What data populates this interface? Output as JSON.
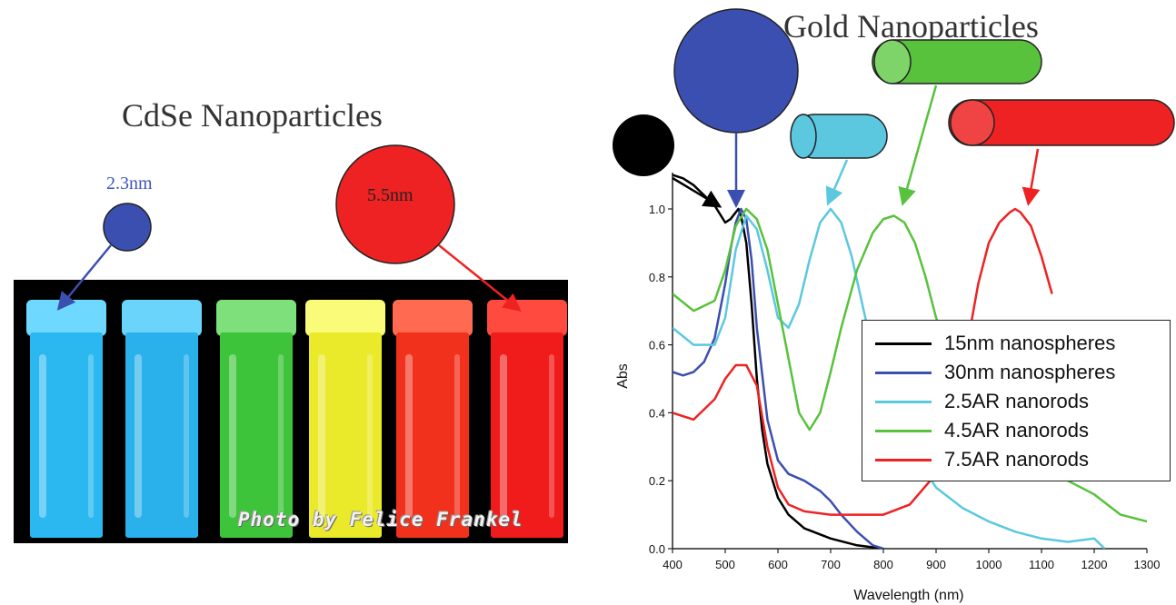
{
  "left": {
    "title": "CdSe Nanoparticles",
    "small_label": "2.3nm",
    "large_label": "5.5nm",
    "photo_credit": "Photo by Felice Frankel",
    "vial_colors": [
      "#2bb8f0",
      "#2ab0ea",
      "#3ec43a",
      "#eaea2a",
      "#f2311c",
      "#f01b1b"
    ],
    "small_dot_color": "#3b4fb0",
    "large_dot_color": "#ee2222"
  },
  "right": {
    "title": "Gold Nanoparticles",
    "shapes": [
      {
        "name": "15nm sphere",
        "color": "#000000"
      },
      {
        "name": "30nm sphere",
        "color": "#3b4fb0"
      },
      {
        "name": "2.5AR rod",
        "color": "#5bc8e0"
      },
      {
        "name": "4.5AR rod",
        "color": "#58c23c"
      },
      {
        "name": "7.5AR rod",
        "color": "#ee2222"
      }
    ]
  },
  "chart_data": {
    "type": "line",
    "title": "",
    "xlabel": "Wavelength (nm)",
    "ylabel": "Abs",
    "xlim": [
      400,
      1300
    ],
    "ylim": [
      0.0,
      1.0
    ],
    "x_ticks": [
      "400",
      "500",
      "600",
      "700",
      "800",
      "900",
      "1000",
      "1100",
      "1200",
      "1300"
    ],
    "y_ticks": [
      "0.0",
      "0.2",
      "0.4",
      "0.6",
      "0.8",
      "1.0"
    ],
    "legend_position": "right",
    "series": [
      {
        "name": "15nm nanospheres",
        "color": "#000000",
        "x": [
          400,
          420,
          440,
          460,
          480,
          500,
          510,
          520,
          525,
          530,
          540,
          550,
          560,
          570,
          580,
          600,
          620,
          650,
          700,
          750,
          800
        ],
        "y": [
          1.1,
          1.09,
          1.07,
          1.04,
          1.01,
          0.96,
          0.97,
          0.99,
          1.0,
          0.98,
          0.9,
          0.72,
          0.5,
          0.35,
          0.25,
          0.15,
          0.1,
          0.06,
          0.03,
          0.01,
          0.0
        ]
      },
      {
        "name": "30nm nanospheres",
        "color": "#3b4fb0",
        "x": [
          400,
          420,
          440,
          460,
          480,
          500,
          510,
          520,
          530,
          540,
          550,
          560,
          580,
          600,
          620,
          650,
          680,
          700,
          720,
          750,
          780,
          800
        ],
        "y": [
          0.52,
          0.51,
          0.52,
          0.55,
          0.62,
          0.78,
          0.88,
          0.96,
          1.0,
          0.97,
          0.85,
          0.65,
          0.38,
          0.26,
          0.22,
          0.2,
          0.17,
          0.14,
          0.1,
          0.05,
          0.01,
          0.0
        ]
      },
      {
        "name": "2.5AR nanorods",
        "color": "#5bc8e0",
        "x": [
          400,
          440,
          480,
          500,
          520,
          540,
          560,
          580,
          600,
          620,
          640,
          660,
          680,
          700,
          720,
          740,
          760,
          780,
          800,
          850,
          900,
          950,
          1000,
          1050,
          1100,
          1150,
          1200,
          1220
        ],
        "y": [
          0.65,
          0.6,
          0.6,
          0.68,
          0.88,
          0.98,
          0.94,
          0.82,
          0.68,
          0.65,
          0.72,
          0.85,
          0.96,
          1.0,
          0.96,
          0.86,
          0.72,
          0.58,
          0.45,
          0.3,
          0.18,
          0.12,
          0.08,
          0.05,
          0.03,
          0.02,
          0.03,
          0.0
        ]
      },
      {
        "name": "4.5AR nanorods",
        "color": "#58c23c",
        "x": [
          400,
          440,
          480,
          500,
          520,
          540,
          560,
          580,
          600,
          620,
          640,
          660,
          680,
          700,
          720,
          750,
          780,
          800,
          820,
          840,
          860,
          880,
          900,
          950,
          1000,
          1050,
          1100,
          1150,
          1200,
          1250,
          1300
        ],
        "y": [
          0.75,
          0.7,
          0.73,
          0.82,
          0.95,
          1.0,
          0.97,
          0.88,
          0.72,
          0.56,
          0.4,
          0.35,
          0.4,
          0.52,
          0.65,
          0.82,
          0.93,
          0.97,
          0.98,
          0.96,
          0.9,
          0.8,
          0.68,
          0.46,
          0.33,
          0.27,
          0.23,
          0.2,
          0.16,
          0.1,
          0.08
        ]
      },
      {
        "name": "7.5AR nanorods",
        "color": "#ee2222",
        "x": [
          400,
          440,
          480,
          500,
          520,
          540,
          560,
          580,
          600,
          620,
          650,
          700,
          750,
          800,
          850,
          900,
          950,
          980,
          1000,
          1020,
          1040,
          1050,
          1060,
          1080,
          1100,
          1120
        ],
        "y": [
          0.4,
          0.38,
          0.44,
          0.5,
          0.54,
          0.54,
          0.48,
          0.3,
          0.18,
          0.13,
          0.11,
          0.1,
          0.1,
          0.1,
          0.13,
          0.22,
          0.52,
          0.78,
          0.9,
          0.96,
          0.99,
          1.0,
          0.99,
          0.95,
          0.86,
          0.75
        ]
      }
    ]
  }
}
